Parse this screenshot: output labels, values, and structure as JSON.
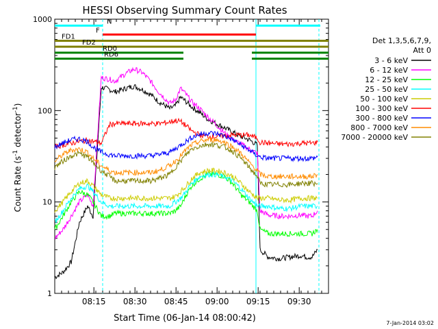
{
  "chart_data": {
    "type": "line",
    "title": "HESSI Observing Summary Count Rates",
    "xlabel": "Start Time (06-Jan-14 08:00:42)",
    "ylabel_main": "Count Rate (s",
    "ylabel_sup1": "-1",
    "ylabel_mid": " detector",
    "ylabel_sup2": "-1",
    "ylabel_end": ")",
    "yscale": "log",
    "ylim": [
      1,
      1000
    ],
    "xlim_minutes": [
      0,
      100
    ],
    "x_ticks": [
      {
        "min": 14.3,
        "label": "08:15"
      },
      {
        "min": 29.3,
        "label": "08:30"
      },
      {
        "min": 44.3,
        "label": "08:45"
      },
      {
        "min": 59.3,
        "label": "09:00"
      },
      {
        "min": 74.3,
        "label": "09:15"
      },
      {
        "min": 89.3,
        "label": "09:30"
      }
    ],
    "y_ticks": [
      {
        "value": 1,
        "label": "1"
      },
      {
        "value": 10,
        "label": "10"
      },
      {
        "value": 100,
        "label": "100"
      },
      {
        "value": 1000,
        "label": "1000"
      }
    ],
    "legend_header": [
      "Det 1,3,5,6,7,9,",
      "Att 0"
    ],
    "timestamp": "7-Jan-2014 03:02",
    "series": [
      {
        "name": "3 - 6 keV",
        "color": "#000000",
        "x": [
          0,
          3,
          6,
          9,
          12,
          14,
          17,
          20,
          22,
          26,
          29,
          32,
          35,
          38,
          42,
          44,
          46,
          48,
          50,
          53,
          56,
          59,
          62,
          65,
          68,
          71,
          74,
          75,
          78,
          82,
          86,
          90,
          92,
          94,
          96
        ],
        "y": [
          1.5,
          1.7,
          2.2,
          6,
          9,
          7,
          180,
          170,
          160,
          175,
          185,
          170,
          150,
          125,
          105,
          112,
          140,
          125,
          110,
          95,
          80,
          72,
          65,
          58,
          52,
          48,
          42,
          3,
          2.5,
          2.4,
          2.5,
          2.6,
          2.5,
          2.5,
          3
        ]
      },
      {
        "name": "6 - 12 keV",
        "color": "#ff00ff",
        "x": [
          0,
          3,
          6,
          9,
          12,
          14,
          17,
          20,
          22,
          26,
          29,
          32,
          35,
          38,
          42,
          44,
          46,
          48,
          50,
          53,
          56,
          59,
          62,
          65,
          68,
          71,
          74,
          75,
          78,
          82,
          86,
          90,
          92,
          94,
          96
        ],
        "y": [
          4,
          5,
          7,
          10,
          12,
          9,
          230,
          220,
          210,
          255,
          285,
          260,
          210,
          160,
          120,
          130,
          175,
          150,
          125,
          105,
          85,
          70,
          57,
          48,
          43,
          38,
          34,
          8,
          7.2,
          7,
          7,
          7.2,
          7,
          7,
          8
        ]
      },
      {
        "name": "12 - 25 keV",
        "color": "#00ff00",
        "x": [
          0,
          3,
          6,
          9,
          12,
          14,
          17,
          20,
          22,
          26,
          29,
          32,
          35,
          38,
          42,
          44,
          46,
          48,
          50,
          53,
          56,
          59,
          62,
          65,
          68,
          71,
          74,
          75,
          78,
          82,
          86,
          90,
          92,
          94,
          96
        ],
        "y": [
          5,
          7,
          10,
          13,
          12,
          10,
          7,
          7,
          7.5,
          7.5,
          7.5,
          7.5,
          7.5,
          7.5,
          7.5,
          8,
          9,
          12,
          15,
          18,
          20,
          20,
          19,
          16,
          12,
          10,
          8,
          5,
          4.5,
          4.5,
          4.5,
          4.5,
          4.5,
          4.5,
          5
        ]
      },
      {
        "name": "25 - 50 keV",
        "color": "#00ffff",
        "x": [
          0,
          3,
          6,
          9,
          12,
          14,
          17,
          20,
          22,
          26,
          29,
          32,
          35,
          38,
          42,
          44,
          46,
          48,
          50,
          53,
          56,
          59,
          62,
          65,
          68,
          71,
          74,
          75,
          78,
          82,
          86,
          90,
          92,
          94,
          96
        ],
        "y": [
          6,
          8,
          11,
          14,
          15,
          13,
          10,
          9,
          9,
          9,
          9,
          9,
          9,
          9,
          9,
          10,
          11,
          13,
          16,
          19,
          20,
          20,
          19,
          17,
          14,
          11,
          9,
          9,
          9,
          8.5,
          8.5,
          9,
          9,
          9,
          9
        ]
      },
      {
        "name": "50 - 100 keV",
        "color": "#cccc00",
        "x": [
          0,
          3,
          6,
          9,
          12,
          14,
          17,
          20,
          22,
          26,
          29,
          32,
          35,
          38,
          42,
          44,
          46,
          48,
          50,
          53,
          56,
          59,
          62,
          65,
          68,
          71,
          74,
          75,
          78,
          82,
          86,
          90,
          92,
          94,
          96
        ],
        "y": [
          8,
          10,
          13,
          16,
          17,
          15,
          12,
          11,
          11,
          11,
          11,
          11,
          11,
          11,
          11,
          11.5,
          13,
          15,
          18,
          21,
          22,
          22,
          21,
          19,
          16,
          13,
          11,
          11,
          11,
          10.5,
          10.5,
          11,
          11,
          11,
          11
        ]
      },
      {
        "name": "100 - 300 keV",
        "color": "#ff0000",
        "x": [
          0,
          3,
          6,
          9,
          12,
          14,
          17,
          20,
          22,
          26,
          29,
          32,
          35,
          38,
          42,
          44,
          46,
          48,
          50,
          53,
          56,
          59,
          62,
          65,
          68,
          71,
          74,
          75,
          78,
          82,
          86,
          90,
          92,
          94,
          96
        ],
        "y": [
          40,
          42,
          44,
          46,
          47,
          46,
          44,
          70,
          72,
          72,
          72,
          72,
          72,
          72,
          75,
          78,
          76,
          68,
          60,
          54,
          52,
          52,
          53,
          54,
          54,
          54,
          50,
          45,
          44,
          43,
          43,
          44,
          44,
          44,
          45
        ]
      },
      {
        "name": "300 - 800 keV",
        "color": "#0000ff",
        "x": [
          0,
          3,
          6,
          9,
          12,
          14,
          17,
          20,
          22,
          26,
          29,
          32,
          35,
          38,
          42,
          44,
          46,
          48,
          50,
          53,
          56,
          59,
          62,
          65,
          68,
          71,
          74,
          75,
          78,
          82,
          86,
          90,
          92,
          94,
          96
        ],
        "y": [
          40,
          44,
          48,
          49,
          46,
          40,
          35,
          33,
          32,
          32,
          32,
          32,
          32,
          33,
          35,
          38,
          42,
          46,
          51,
          55,
          57,
          56,
          53,
          48,
          42,
          37,
          32,
          31,
          30,
          30,
          30,
          30,
          30,
          30,
          31
        ]
      },
      {
        "name": "800 - 7000 keV",
        "color": "#ff8c00",
        "x": [
          0,
          3,
          6,
          9,
          12,
          14,
          17,
          20,
          22,
          26,
          29,
          32,
          35,
          38,
          42,
          44,
          46,
          48,
          50,
          53,
          56,
          59,
          62,
          65,
          68,
          71,
          74,
          75,
          78,
          82,
          86,
          90,
          92,
          94,
          96
        ],
        "y": [
          28,
          33,
          37,
          38,
          35,
          30,
          25,
          22,
          21,
          21,
          21,
          21,
          21,
          22,
          25,
          28,
          32,
          37,
          42,
          46,
          48,
          48,
          45,
          40,
          34,
          27,
          22,
          20,
          19,
          19,
          19,
          19,
          19,
          19,
          20
        ]
      },
      {
        "name": "7000 - 20000 keV",
        "color": "#808000",
        "x": [
          0,
          3,
          6,
          9,
          12,
          14,
          17,
          20,
          22,
          26,
          29,
          32,
          35,
          38,
          42,
          44,
          46,
          48,
          50,
          53,
          56,
          59,
          62,
          65,
          68,
          71,
          74,
          75,
          78,
          82,
          86,
          90,
          92,
          94,
          96
        ],
        "y": [
          24,
          28,
          32,
          34,
          31,
          27,
          22,
          19,
          17,
          17,
          17,
          17,
          17,
          18,
          20,
          24,
          28,
          33,
          38,
          41,
          43,
          42,
          40,
          36,
          30,
          24,
          19,
          16,
          15.5,
          15.5,
          15.5,
          16,
          16,
          16,
          16
        ]
      }
    ],
    "state_bars": [
      {
        "label": "N",
        "color": "#00ffff",
        "value": 850,
        "segments": [
          [
            0,
            17.5
          ],
          [
            73.5,
            97
          ]
        ]
      },
      {
        "label": "F",
        "color": "#ff0000",
        "value": 680,
        "segments": [
          [
            17.5,
            73.5
          ]
        ]
      },
      {
        "label": "FD1",
        "color": "#808000",
        "value": 580,
        "segments": [
          [
            0,
            100
          ]
        ]
      },
      {
        "label": "FD2",
        "color": "#808000",
        "value": 500,
        "segments": [
          [
            0,
            100
          ]
        ]
      },
      {
        "label": "RD0",
        "color": "#008000",
        "value": 430,
        "segments": [
          [
            0,
            47
          ],
          [
            72,
            100
          ]
        ]
      },
      {
        "label": "RD6",
        "color": "#008000",
        "value": 370,
        "segments": [
          [
            0,
            47
          ],
          [
            72,
            100
          ]
        ]
      }
    ],
    "vlines": [
      {
        "min": 17.5,
        "color": "#00ffff",
        "style": "dashed"
      },
      {
        "min": 73.5,
        "color": "#00ffff",
        "style": "solid"
      },
      {
        "min": 96.5,
        "color": "#00ffff",
        "style": "dashed"
      }
    ]
  }
}
